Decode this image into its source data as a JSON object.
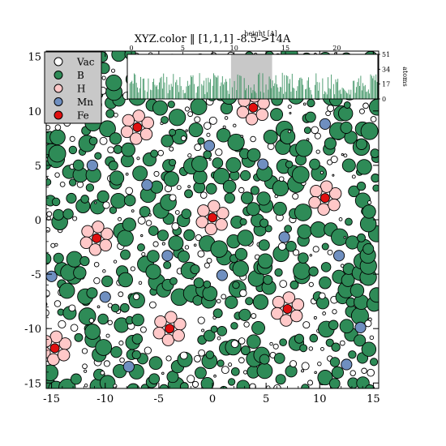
{
  "chart_data": {
    "type": "scatter",
    "title": "XYZ.color ‖ [1,1,1] -8.5->14A",
    "xlim": [
      -15.5,
      15.5
    ],
    "ylim": [
      -15.5,
      15.5
    ],
    "x_ticks": [
      -15,
      -10,
      -5,
      0,
      5,
      10,
      15
    ],
    "y_ticks": [
      15,
      10,
      5,
      0,
      -5,
      -10,
      -15
    ],
    "legend": {
      "position": "top-left",
      "entries": [
        {
          "label": "Vac",
          "color": "#ffffff"
        },
        {
          "label": "B",
          "color": "#2e8b57"
        },
        {
          "label": "H",
          "color": "#ffc8c8"
        },
        {
          "label": "Mn",
          "color": "#6f8fc0"
        },
        {
          "label": "Fe",
          "color": "#e01010"
        }
      ]
    },
    "fe_clusters": [
      {
        "x": -7,
        "y": 8.5
      },
      {
        "x": 3.8,
        "y": 10.3
      },
      {
        "x": 10.5,
        "y": 2
      },
      {
        "x": 0,
        "y": 0.2
      },
      {
        "x": -10.8,
        "y": -1.7
      },
      {
        "x": -4,
        "y": -10
      },
      {
        "x": 7,
        "y": -8.2
      },
      {
        "x": -14.7,
        "y": -11.8
      }
    ],
    "mn_points": [
      {
        "x": 10.5,
        "y": 8.8
      },
      {
        "x": -0.3,
        "y": 6.8
      },
      {
        "x": 4.7,
        "y": 5.1
      },
      {
        "x": -11.2,
        "y": 5
      },
      {
        "x": -6.1,
        "y": 3.2
      },
      {
        "x": 6.7,
        "y": -1.6
      },
      {
        "x": -4.2,
        "y": -3.3
      },
      {
        "x": 11.8,
        "y": -3.3
      },
      {
        "x": -15,
        "y": -5.2
      },
      {
        "x": 0.9,
        "y": -5.1
      },
      {
        "x": -10,
        "y": -7.1
      },
      {
        "x": 13.8,
        "y": -9.9
      },
      {
        "x": -7.8,
        "y": -13.5
      },
      {
        "x": 12.5,
        "y": -13.3
      }
    ],
    "inset": {
      "xlabel": "height [A]",
      "ylabel": "atoms",
      "x_ticks": [
        "0",
        "5",
        "10",
        "15",
        "20"
      ],
      "x_tick_values": [
        0,
        5,
        10,
        15,
        20
      ],
      "xlim": [
        -0.4,
        24
      ],
      "y_ticks": [
        "0",
        "17",
        "34",
        "51"
      ],
      "y_tick_values": [
        0,
        17,
        34,
        51
      ],
      "ylim": [
        0,
        51
      ],
      "highlight_ranges": [
        [
          9.7,
          13.7
        ]
      ],
      "bar_color": "#2e8b57",
      "highlight_color": "#c8c8c8"
    }
  }
}
